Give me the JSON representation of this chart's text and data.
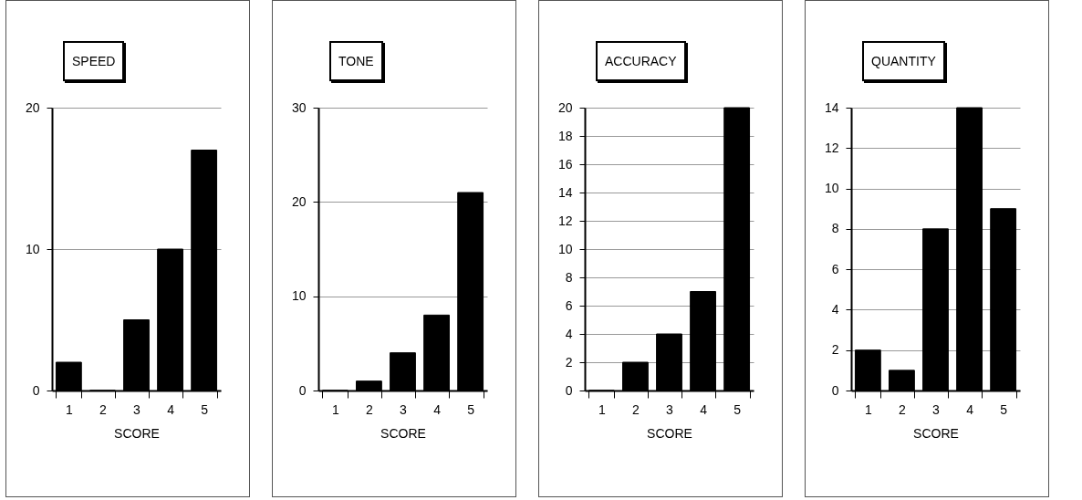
{
  "chart_data": [
    {
      "type": "bar",
      "title": "SPEED",
      "xlabel": "SCORE",
      "categories": [
        "1",
        "2",
        "3",
        "4",
        "5"
      ],
      "values": [
        2,
        0,
        5,
        10,
        17
      ],
      "color": "#000000",
      "ylim": [
        0,
        20
      ],
      "yticks": [
        0,
        10,
        20
      ],
      "grid": "y"
    },
    {
      "type": "bar",
      "title": "TONE",
      "xlabel": "SCORE",
      "categories": [
        "1",
        "2",
        "3",
        "4",
        "5"
      ],
      "values": [
        0,
        1,
        4,
        8,
        21
      ],
      "color": "#000000",
      "ylim": [
        0,
        30
      ],
      "yticks": [
        0,
        10,
        20,
        30
      ],
      "grid": "y"
    },
    {
      "type": "bar",
      "title": "ACCURACY",
      "xlabel": "SCORE",
      "categories": [
        "1",
        "2",
        "3",
        "4",
        "5"
      ],
      "values": [
        0,
        2,
        4,
        7,
        20
      ],
      "color": "#000000",
      "ylim": [
        0,
        20
      ],
      "yticks": [
        0,
        2,
        4,
        6,
        8,
        10,
        12,
        14,
        16,
        18,
        20
      ],
      "grid": "y"
    },
    {
      "type": "bar",
      "title": "QUANTITY",
      "xlabel": "SCORE",
      "categories": [
        "1",
        "2",
        "3",
        "4",
        "5"
      ],
      "values": [
        2,
        1,
        8,
        14,
        9
      ],
      "color": "#000000",
      "ylim": [
        0,
        14
      ],
      "yticks": [
        0,
        2,
        4,
        6,
        8,
        10,
        12,
        14
      ],
      "grid": "y"
    }
  ]
}
